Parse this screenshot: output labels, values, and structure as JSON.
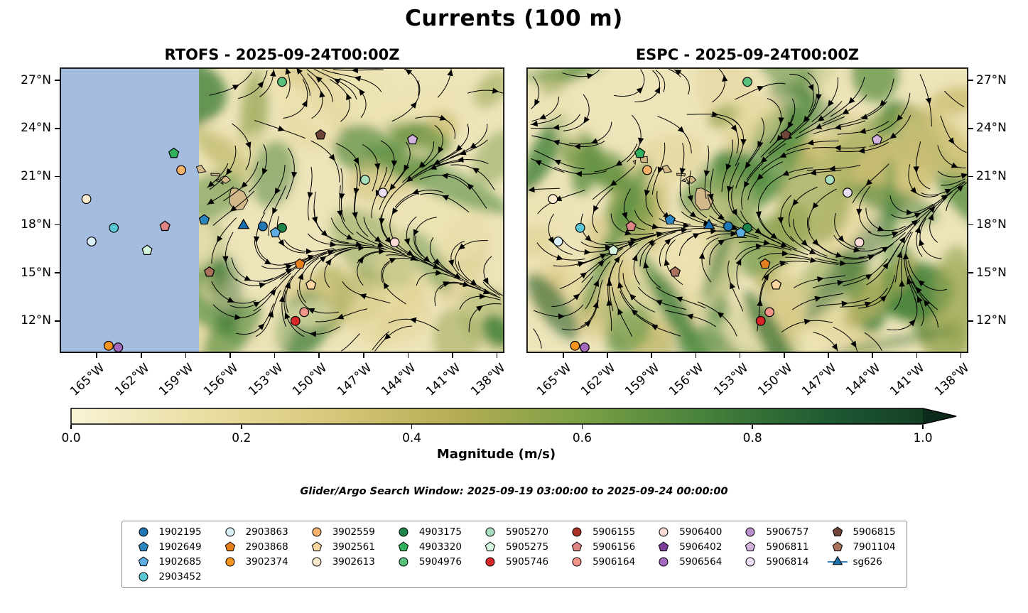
{
  "title": "Currents (100 m)",
  "panels": [
    {
      "id": "rtofs",
      "title": "RTOFS - 2025-09-24T00:00Z",
      "no_data_mask": true
    },
    {
      "id": "espc",
      "title": "ESPC - 2025-09-24T00:00Z",
      "no_data_mask": false
    }
  ],
  "footer": {
    "search_window": "Glider/Argo Search Window: 2025-09-19 03:00:00 to 2025-09-24 00:00:00"
  },
  "chart_data": {
    "type": "heatmap",
    "subtype": "streamplot_current_map",
    "title": "Currents (100 m)",
    "extent": {
      "lon_min": -167.5,
      "lon_max": -137.5,
      "lat_min": 10.0,
      "lat_max": 27.8
    },
    "x_ticks": [
      {
        "value": -165,
        "label": "165°W"
      },
      {
        "value": -162,
        "label": "162°W"
      },
      {
        "value": -159,
        "label": "159°W"
      },
      {
        "value": -156,
        "label": "156°W"
      },
      {
        "value": -153,
        "label": "153°W"
      },
      {
        "value": -150,
        "label": "150°W"
      },
      {
        "value": -147,
        "label": "147°W"
      },
      {
        "value": -144,
        "label": "144°W"
      },
      {
        "value": -141,
        "label": "141°W"
      },
      {
        "value": -138,
        "label": "138°W"
      }
    ],
    "y_ticks": [
      {
        "value": 27,
        "label": "27°N"
      },
      {
        "value": 24,
        "label": "24°N"
      },
      {
        "value": 21,
        "label": "21°N"
      },
      {
        "value": 18,
        "label": "18°N"
      },
      {
        "value": 15,
        "label": "15°N"
      },
      {
        "value": 12,
        "label": "12°N"
      }
    ],
    "ocean_base_color": "#ede4ba",
    "land_color": "#d3b98a",
    "streamline_color": "#000000",
    "no_data_color": "#a3bcdf",
    "rtofs_no_data_lon_max": -158.1,
    "colorbar": {
      "label": "Magnitude (m/s)",
      "min": 0.0,
      "max": 1.0,
      "extend": "max",
      "ticks": [
        {
          "value": 0.0,
          "label": "0.0"
        },
        {
          "value": 0.2,
          "label": "0.2"
        },
        {
          "value": 0.4,
          "label": "0.4"
        },
        {
          "value": 0.6,
          "label": "0.6"
        },
        {
          "value": 0.8,
          "label": "0.8"
        },
        {
          "value": 1.0,
          "label": "1.0"
        }
      ],
      "stops": [
        {
          "pos": 0.0,
          "color": "#f8f3d6"
        },
        {
          "pos": 0.15,
          "color": "#eadfa4"
        },
        {
          "pos": 0.3,
          "color": "#d9c87c"
        },
        {
          "pos": 0.45,
          "color": "#b5ad55"
        },
        {
          "pos": 0.6,
          "color": "#7ba045"
        },
        {
          "pos": 0.75,
          "color": "#44803b"
        },
        {
          "pos": 0.9,
          "color": "#1d5631"
        },
        {
          "pos": 1.0,
          "color": "#143f25"
        }
      ],
      "extend_color": "#0d2b1a"
    },
    "islands": [
      [
        [
          -156.05,
          19.78
        ],
        [
          -155.93,
          20.25
        ],
        [
          -155.6,
          20.28
        ],
        [
          -155.05,
          20.02
        ],
        [
          -154.8,
          19.5
        ],
        [
          -155.12,
          18.98
        ],
        [
          -155.68,
          18.9
        ],
        [
          -156.02,
          19.32
        ]
      ],
      [
        [
          -156.68,
          20.9
        ],
        [
          -156.45,
          21.02
        ],
        [
          -156.22,
          21.0
        ],
        [
          -155.98,
          20.78
        ],
        [
          -156.3,
          20.57
        ],
        [
          -156.55,
          20.72
        ]
      ],
      [
        [
          -157.3,
          21.2
        ],
        [
          -156.72,
          21.18
        ],
        [
          -156.75,
          21.03
        ],
        [
          -157.28,
          21.07
        ]
      ],
      [
        [
          -158.28,
          21.6
        ],
        [
          -157.95,
          21.72
        ],
        [
          -157.64,
          21.3
        ],
        [
          -158.12,
          21.24
        ]
      ],
      [
        [
          -159.78,
          22.2
        ],
        [
          -159.3,
          22.25
        ],
        [
          -159.28,
          21.88
        ],
        [
          -159.72,
          21.9
        ]
      ],
      [
        [
          -160.25,
          21.95
        ],
        [
          -160.08,
          22.02
        ],
        [
          -160.12,
          21.78
        ]
      ],
      [
        [
          -156.95,
          20.73
        ],
        [
          -156.78,
          20.85
        ],
        [
          -156.68,
          20.68
        ]
      ],
      [
        [
          -156.62,
          20.6
        ],
        [
          -156.52,
          20.65
        ],
        [
          -156.48,
          20.52
        ]
      ]
    ],
    "markers": [
      {
        "id": "5904976",
        "lon": -152.5,
        "lat": 26.9
      },
      {
        "id": "5906815",
        "lon": -149.9,
        "lat": 23.6
      },
      {
        "id": "5906811",
        "lon": -143.7,
        "lat": 23.3
      },
      {
        "id": "4903320",
        "lon": -159.8,
        "lat": 22.45
      },
      {
        "id": "3902559",
        "lon": -159.3,
        "lat": 21.4
      },
      {
        "id": "5905270",
        "lon": -146.9,
        "lat": 20.8
      },
      {
        "id": "5906814",
        "lon": -145.7,
        "lat": 20.0
      },
      {
        "id": "3902613",
        "lon": -165.7,
        "lat": 19.6
      },
      {
        "id": "1902649",
        "lon": -157.75,
        "lat": 18.3
      },
      {
        "id": "sg626",
        "lon": -155.1,
        "lat": 17.95
      },
      {
        "id": "1902195",
        "lon": -153.8,
        "lat": 17.9
      },
      {
        "id": "4903175",
        "lon": -152.5,
        "lat": 17.8
      },
      {
        "id": "1902685",
        "lon": -152.95,
        "lat": 17.5
      },
      {
        "id": "5906156",
        "lon": -160.4,
        "lat": 17.9
      },
      {
        "id": "2903452",
        "lon": -163.85,
        "lat": 17.8
      },
      {
        "id": "2903863",
        "lon": -165.35,
        "lat": 16.95
      },
      {
        "id": "5905275",
        "lon": -161.6,
        "lat": 16.4
      },
      {
        "id": "5906400",
        "lon": -144.9,
        "lat": 16.9
      },
      {
        "id": "7901104",
        "lon": -157.4,
        "lat": 15.05
      },
      {
        "id": "2903868",
        "lon": -151.3,
        "lat": 15.55
      },
      {
        "id": "3902561",
        "lon": -150.55,
        "lat": 14.25
      },
      {
        "id": "5906164",
        "lon": -151.0,
        "lat": 12.55
      },
      {
        "id": "5905746",
        "lon": -151.6,
        "lat": 12.0
      },
      {
        "id": "3902374",
        "lon": -164.2,
        "lat": 10.45
      },
      {
        "id": "5906564",
        "lon": -163.55,
        "lat": 10.35
      }
    ]
  },
  "legend": {
    "columns": [
      [
        "1902195",
        "1902649",
        "1902685",
        "2903452"
      ],
      [
        "2903863",
        "2903868",
        "3902374"
      ],
      [
        "3902559",
        "3902561",
        "3902613"
      ],
      [
        "4903175",
        "4903320",
        "5904976"
      ],
      [
        "5905270",
        "5905275",
        "5905746"
      ],
      [
        "5906155",
        "5906156",
        "5906164"
      ],
      [
        "5906400",
        "5906402",
        "5906564"
      ],
      [
        "5906757",
        "5906811",
        "5906814"
      ],
      [
        "5906815",
        "7901104",
        "sg626"
      ]
    ],
    "styles": {
      "1902195": {
        "label": "1902195",
        "shape": "circle",
        "color": "#2077b4"
      },
      "1902649": {
        "label": "1902649",
        "shape": "pentagon",
        "color": "#2e86c1"
      },
      "1902685": {
        "label": "1902685",
        "shape": "pentagon",
        "color": "#5dade2"
      },
      "2903452": {
        "label": "2903452",
        "shape": "circle",
        "color": "#5bc8d8"
      },
      "2903863": {
        "label": "2903863",
        "shape": "circle",
        "color": "#d9eef7"
      },
      "2903868": {
        "label": "2903868",
        "shape": "pentagon",
        "color": "#e67f1e"
      },
      "3902374": {
        "label": "3902374",
        "shape": "circle",
        "color": "#f5941f"
      },
      "3902559": {
        "label": "3902559",
        "shape": "circle",
        "color": "#f8b26a"
      },
      "3902561": {
        "label": "3902561",
        "shape": "pentagon",
        "color": "#fad7a0"
      },
      "3902613": {
        "label": "3902613",
        "shape": "circle",
        "color": "#fdebd0"
      },
      "4903175": {
        "label": "4903175",
        "shape": "circle",
        "color": "#1e8449"
      },
      "4903320": {
        "label": "4903320",
        "shape": "pentagon",
        "color": "#2eb05c"
      },
      "5904976": {
        "label": "5904976",
        "shape": "circle",
        "color": "#58c27d"
      },
      "5905270": {
        "label": "5905270",
        "shape": "circle",
        "color": "#a9dfbf"
      },
      "5905275": {
        "label": "5905275",
        "shape": "pentagon",
        "color": "#d5f5dc"
      },
      "5905746": {
        "label": "5905746",
        "shape": "circle",
        "color": "#d62828"
      },
      "5906155": {
        "label": "5906155",
        "shape": "circle",
        "color": "#a93226"
      },
      "5906156": {
        "label": "5906156",
        "shape": "pentagon",
        "color": "#dd8484"
      },
      "5906164": {
        "label": "5906164",
        "shape": "circle",
        "color": "#f1948a"
      },
      "5906400": {
        "label": "5906400",
        "shape": "circle",
        "color": "#fadbd8"
      },
      "5906402": {
        "label": "5906402",
        "shape": "pentagon",
        "color": "#7d3c98"
      },
      "5906564": {
        "label": "5906564",
        "shape": "circle",
        "color": "#a569bd"
      },
      "5906757": {
        "label": "5906757",
        "shape": "circle",
        "color": "#bb8fce"
      },
      "5906811": {
        "label": "5906811",
        "shape": "pentagon",
        "color": "#d2b4de"
      },
      "5906814": {
        "label": "5906814",
        "shape": "circle",
        "color": "#ecdff5"
      },
      "5906815": {
        "label": "5906815",
        "shape": "pentagon",
        "color": "#6e4537"
      },
      "7901104": {
        "label": "7901104",
        "shape": "pentagon",
        "color": "#a9715c"
      },
      "sg626": {
        "label": "sg626",
        "shape": "glider",
        "color": "#1a6fae"
      }
    }
  }
}
